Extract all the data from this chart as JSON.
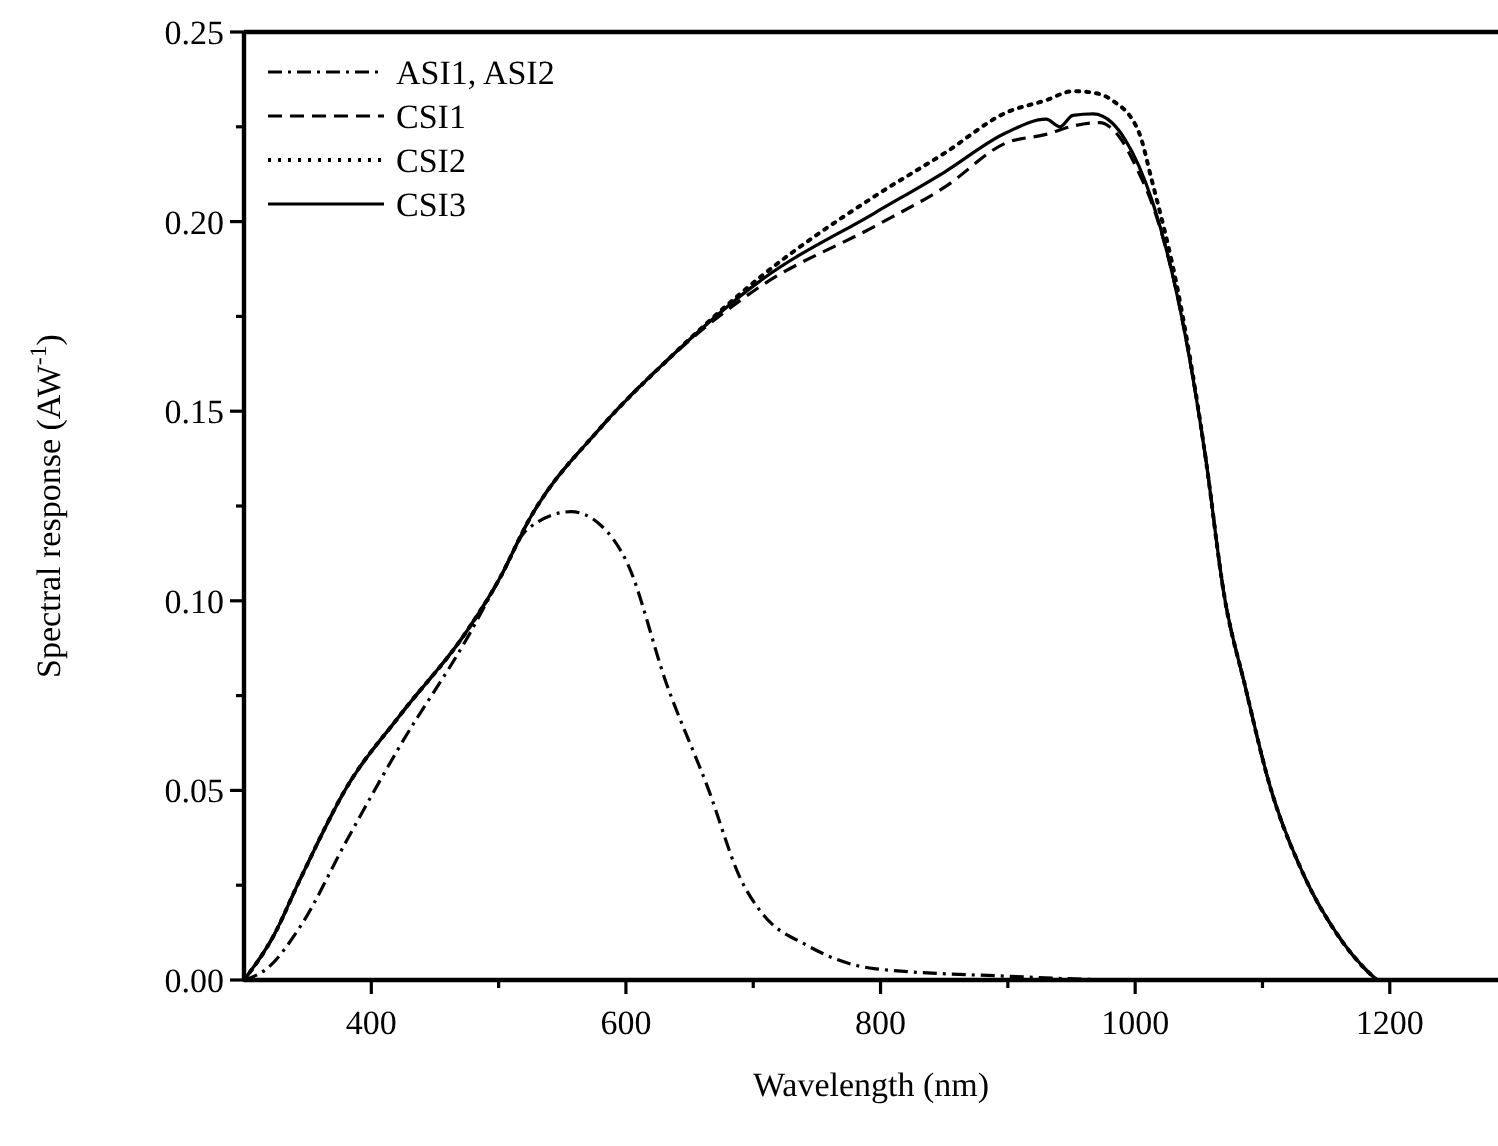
{
  "chart_data": {
    "type": "line",
    "xlabel": "Wavelength (nm)",
    "ylabel": "Spectral response (AW$^{-1}$)",
    "xlim": [
      300,
      1285
    ],
    "ylim": [
      0,
      0.25
    ],
    "xticks": [
      400,
      {
        "value": 500,
        "label": null
      },
      600,
      {
        "value": 700,
        "label": null
      },
      800,
      {
        "value": 900,
        "label": null
      },
      1000,
      {
        "value": 1100,
        "label": null
      },
      1200
    ],
    "yticks": [
      {
        "value": 0,
        "label": "0.00"
      },
      {
        "value": 0.025,
        "label": null
      },
      {
        "value": 0.05,
        "label": "0.05"
      },
      {
        "value": 0.075,
        "label": null
      },
      {
        "value": 0.1,
        "label": "0.10"
      },
      {
        "value": 0.125,
        "label": null
      },
      {
        "value": 0.15,
        "label": "0.15"
      },
      {
        "value": 0.175,
        "label": null
      },
      {
        "value": 0.2,
        "label": "0.20"
      },
      {
        "value": 0.225,
        "label": null
      },
      {
        "value": 0.25,
        "label": "0.25"
      }
    ],
    "legend": "top left",
    "grid": false,
    "marker": "none",
    "series": [
      {
        "name": "ASI1, ASI2",
        "color": "#000000",
        "line_style": "dashdot",
        "x": [
          300,
          318,
          344,
          381,
          423,
          475,
          501,
          523,
          557,
          580,
          601,
          632,
          664,
          691,
          706,
          743,
          795,
          899,
          1000,
          1285
        ],
        "values": [
          0,
          0.003,
          0.014,
          0.037,
          0.062,
          0.09,
          0.106,
          0.119,
          0.1235,
          0.12,
          0.11,
          0.078,
          0.051,
          0.026,
          0.018,
          0.009,
          0.003,
          0.001,
          0,
          0
        ]
      },
      {
        "name": "CSI1",
        "color": "#000000",
        "line_style": "dashed",
        "x": [
          300,
          323,
          344,
          381,
          423,
          475,
          501,
          523,
          580,
          632,
          706,
          795,
          850,
          899,
          930,
          951,
          972,
          987,
          1003,
          1013,
          1034,
          1055,
          1070,
          1086,
          1106,
          1132,
          1158,
          1184,
          1190
        ],
        "values": [
          0,
          0.0115,
          0.0265,
          0.051,
          0.07,
          0.092,
          0.106,
          0.1208,
          0.1456,
          0.1633,
          0.183,
          0.1987,
          0.209,
          0.2208,
          0.223,
          0.2252,
          0.2261,
          0.2226,
          0.2128,
          0.205,
          0.179,
          0.1385,
          0.1013,
          0.078,
          0.051,
          0.028,
          0.0124,
          0.0018,
          0
        ]
      },
      {
        "name": "CSI2",
        "color": "#000000",
        "line_style": "dotted",
        "x": [
          300,
          323,
          344,
          381,
          423,
          475,
          501,
          523,
          580,
          632,
          706,
          795,
          850,
          899,
          930,
          951,
          967,
          982,
          1003,
          1013,
          1034,
          1055,
          1070,
          1086,
          1106,
          1132,
          1158,
          1184,
          1190
        ],
        "values": [
          0,
          0.0115,
          0.0265,
          0.051,
          0.07,
          0.092,
          0.106,
          0.1208,
          0.1456,
          0.1633,
          0.1855,
          0.2066,
          0.218,
          0.2288,
          0.232,
          0.2344,
          0.234,
          0.232,
          0.2235,
          0.211,
          0.181,
          0.1385,
          0.1013,
          0.078,
          0.051,
          0.028,
          0.0124,
          0.0018,
          0
        ]
      },
      {
        "name": "CSI3",
        "color": "#000000",
        "line_style": "solid",
        "x": [
          300,
          323,
          344,
          381,
          423,
          475,
          501,
          523,
          580,
          632,
          706,
          795,
          850,
          899,
          930,
          941,
          951,
          967,
          982,
          992,
          1013,
          1034,
          1055,
          1070,
          1086,
          1106,
          1132,
          1158,
          1184,
          1190
        ],
        "values": [
          0,
          0.0115,
          0.0265,
          0.051,
          0.07,
          0.092,
          0.106,
          0.1208,
          0.1456,
          0.1633,
          0.1845,
          0.2022,
          0.213,
          0.2235,
          0.227,
          0.225,
          0.228,
          0.2284,
          0.226,
          0.2217,
          0.2058,
          0.179,
          0.1385,
          0.1013,
          0.078,
          0.051,
          0.028,
          0.0124,
          0.0018,
          0
        ]
      }
    ]
  }
}
